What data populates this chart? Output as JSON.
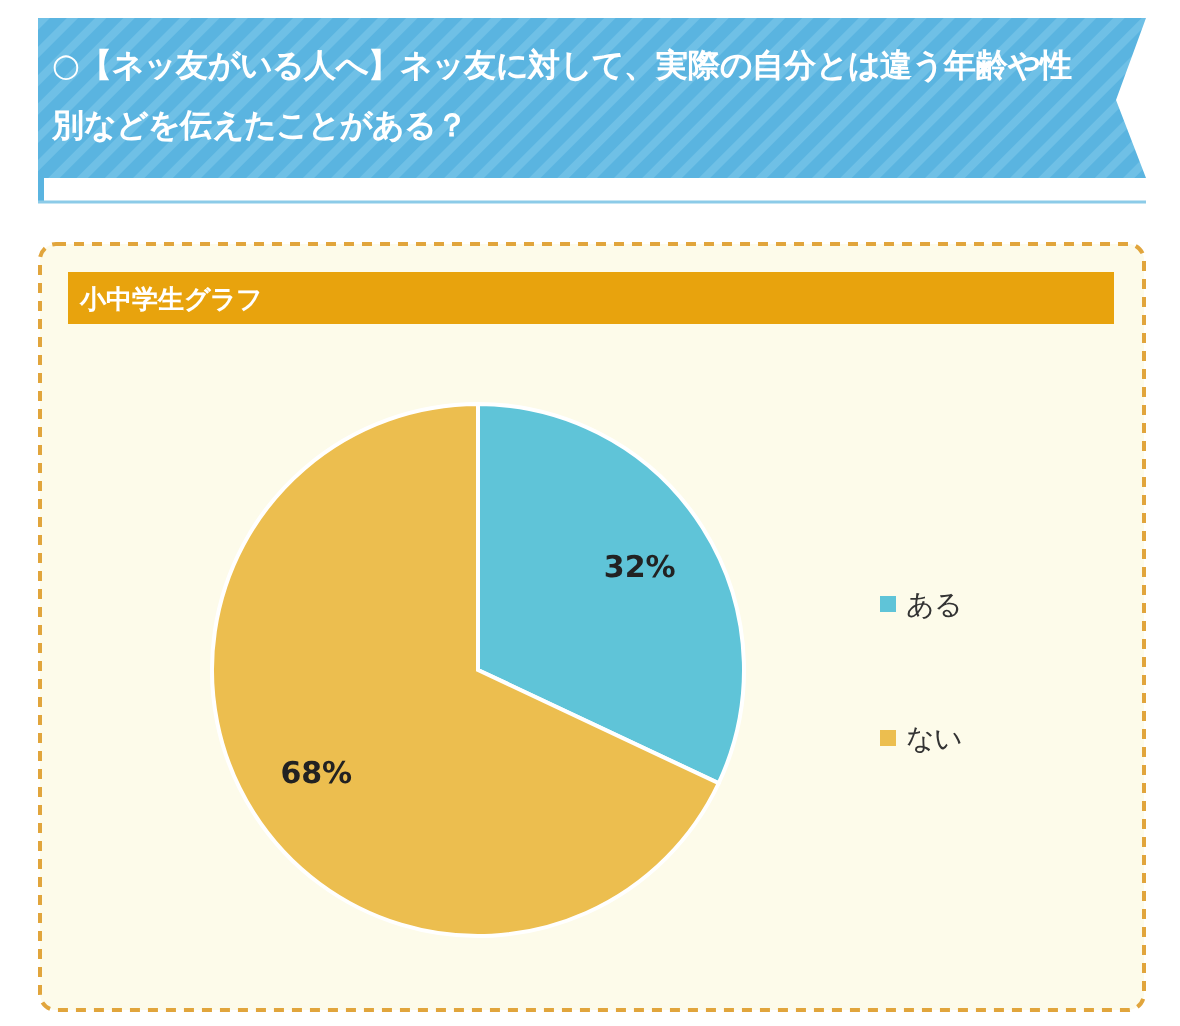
{
  "chart_data": {
    "type": "pie",
    "title": "○【ネッ友がいる人へ】ネッ友に対して、実際の自分とは違う年齢や性別などを伝えたことがある？",
    "subtitle": "小中学生グラフ",
    "categories": [
      "ある",
      "ない"
    ],
    "values": [
      32,
      68
    ],
    "colors": [
      "#5fc4d8",
      "#ecbe4f"
    ],
    "value_labels": [
      "32%",
      "68%"
    ],
    "legend": "right"
  }
}
